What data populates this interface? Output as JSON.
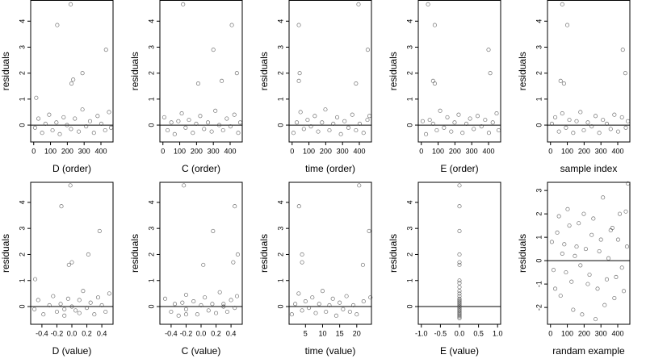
{
  "chart_data": [
    {
      "type": "scatter",
      "xlabel": "D (order)",
      "ylabel": "residuals",
      "color": "#444444",
      "hline": 0,
      "xlim": [
        -18,
        472
      ],
      "ylim": [
        -0.65,
        4.8
      ],
      "xticks": [
        0,
        100,
        200,
        300,
        400
      ],
      "yticks": [
        0,
        1,
        2,
        3,
        4
      ],
      "x": [
        220,
        140,
        430,
        290,
        235,
        225,
        15,
        8,
        28,
        50,
        70,
        92,
        112,
        135,
        155,
        178,
        198,
        222,
        245,
        268,
        290,
        312,
        335,
        358,
        380,
        402,
        425,
        448,
        460
      ],
      "values": [
        4.65,
        3.85,
        2.9,
        2.0,
        1.75,
        1.6,
        1.05,
        -0.1,
        0.25,
        -0.3,
        0.05,
        0.4,
        -0.2,
        0.1,
        -0.35,
        0.3,
        0,
        -0.15,
        0.25,
        -0.25,
        0.6,
        -0.05,
        0.15,
        -0.3,
        0.35,
        0.05,
        -0.2,
        0.5,
        -0.1
      ]
    },
    {
      "type": "scatter",
      "xlabel": "C (order)",
      "ylabel": "residuals",
      "color": "#444444",
      "hline": 0,
      "xlim": [
        -18,
        472
      ],
      "ylim": [
        -0.65,
        4.8
      ],
      "xticks": [
        0,
        100,
        200,
        300,
        400
      ],
      "yticks": [
        0,
        1,
        2,
        3,
        4
      ],
      "x": [
        120,
        410,
        300,
        440,
        350,
        210,
        8,
        28,
        50,
        70,
        92,
        112,
        135,
        155,
        178,
        198,
        222,
        245,
        268,
        290,
        312,
        335,
        358,
        380,
        402,
        425,
        448,
        460
      ],
      "values": [
        4.65,
        3.85,
        2.9,
        2.0,
        1.7,
        1.6,
        0.3,
        -0.2,
        0.1,
        -0.35,
        0.15,
        0.45,
        -0.1,
        0.2,
        -0.3,
        0.05,
        0.35,
        -0.15,
        0.1,
        -0.25,
        0.55,
        0,
        -0.2,
        0.25,
        -0.05,
        0.4,
        -0.3,
        0.1
      ]
    },
    {
      "type": "scatter",
      "xlabel": "time (order)",
      "ylabel": "residuals",
      "color": "#444444",
      "hline": 0,
      "xlim": [
        -18,
        472
      ],
      "ylim": [
        -0.65,
        4.8
      ],
      "xticks": [
        0,
        100,
        200,
        300,
        400
      ],
      "yticks": [
        0,
        1,
        2,
        3,
        4
      ],
      "x": [
        395,
        40,
        450,
        45,
        40,
        380,
        8,
        28,
        50,
        70,
        92,
        112,
        135,
        155,
        178,
        198,
        222,
        245,
        268,
        290,
        312,
        335,
        358,
        380,
        402,
        425,
        448,
        460
      ],
      "values": [
        4.65,
        3.85,
        2.9,
        2.0,
        1.7,
        1.6,
        -0.3,
        0.1,
        0.5,
        -0.15,
        0.2,
        -0.05,
        0.35,
        -0.25,
        0.1,
        0.6,
        -0.2,
        0.05,
        0.3,
        -0.35,
        0.15,
        -0.1,
        0.4,
        -0.2,
        0.05,
        -0.3,
        0.2,
        0.35
      ]
    },
    {
      "type": "scatter",
      "xlabel": "E (order)",
      "ylabel": "residuals",
      "color": "#444444",
      "hline": 0,
      "xlim": [
        -18,
        472
      ],
      "ylim": [
        -0.65,
        4.8
      ],
      "xticks": [
        0,
        100,
        200,
        300,
        400
      ],
      "yticks": [
        0,
        1,
        2,
        3,
        4
      ],
      "x": [
        40,
        80,
        400,
        410,
        70,
        80,
        8,
        28,
        50,
        70,
        92,
        112,
        135,
        155,
        178,
        198,
        222,
        245,
        268,
        290,
        312,
        335,
        358,
        380,
        402,
        425,
        448,
        460
      ],
      "values": [
        4.65,
        3.85,
        2.9,
        2.0,
        1.7,
        1.6,
        0.15,
        -0.35,
        0.2,
        0.05,
        -0.2,
        0.55,
        -0.1,
        0.3,
        -0.25,
        0.1,
        0.4,
        -0.3,
        0.05,
        0.25,
        -0.15,
        0.35,
        -0.05,
        0.2,
        -0.3,
        0.1,
        0.45,
        -0.2
      ]
    },
    {
      "type": "scatter",
      "xlabel": "sample index",
      "ylabel": "residuals",
      "color": "#444444",
      "hline": 0,
      "xlim": [
        -18,
        472
      ],
      "ylim": [
        -0.65,
        4.8
      ],
      "xticks": [
        0,
        100,
        200,
        300,
        400
      ],
      "yticks": [
        0,
        1,
        2,
        3,
        4
      ],
      "x": [
        70,
        100,
        430,
        445,
        60,
        80,
        8,
        28,
        50,
        70,
        92,
        112,
        135,
        155,
        178,
        198,
        222,
        245,
        268,
        290,
        312,
        335,
        358,
        380,
        402,
        425,
        448,
        460
      ],
      "values": [
        4.65,
        3.85,
        2.9,
        2.0,
        1.7,
        1.6,
        0.05,
        0.3,
        -0.25,
        0.45,
        -0.1,
        0.2,
        -0.3,
        0.15,
        0.5,
        -0.2,
        0.1,
        -0.05,
        0.35,
        -0.3,
        0.2,
        0.05,
        -0.15,
        0.4,
        -0.25,
        0.3,
        -0.1,
        0.15
      ]
    },
    {
      "type": "scatter",
      "xlabel": "D (value)",
      "ylabel": "residuals",
      "color": "#444444",
      "hline": 0,
      "xlim": [
        -0.55,
        0.55
      ],
      "ylim": [
        -0.68,
        4.77
      ],
      "xticks": [
        -0.4,
        -0.2,
        {
          "value": 0,
          "label": "0.0"
        },
        0.2,
        0.4
      ],
      "yticks": [
        0,
        1,
        2,
        3,
        4
      ],
      "x": [
        -0.02,
        -0.14,
        0.37,
        0.22,
        0,
        -0.04,
        -0.49,
        -0.5,
        -0.45,
        -0.38,
        -0.3,
        -0.25,
        -0.2,
        -0.15,
        -0.1,
        -0.05,
        0,
        0.05,
        0.1,
        0.1,
        0.15,
        0.2,
        0.25,
        0.3,
        0.35,
        0.4,
        0.45,
        0.5,
        -0.1
      ],
      "values": [
        4.65,
        3.85,
        2.9,
        2.0,
        1.7,
        1.6,
        1.05,
        -0.1,
        0.25,
        -0.3,
        0.05,
        0.4,
        -0.2,
        0.1,
        -0.35,
        0.3,
        0,
        -0.15,
        0.25,
        -0.25,
        0.6,
        -0.05,
        0.15,
        -0.3,
        0.35,
        0.05,
        -0.2,
        0.5,
        -0.1
      ]
    },
    {
      "type": "scatter",
      "xlabel": "C (value)",
      "ylabel": "residuals",
      "color": "#444444",
      "hline": 0,
      "xlim": [
        -0.55,
        0.55
      ],
      "ylim": [
        -0.68,
        4.77
      ],
      "xticks": [
        -0.4,
        -0.2,
        {
          "value": 0,
          "label": "0.0"
        },
        0.2,
        0.4
      ],
      "yticks": [
        0,
        1,
        2,
        3,
        4
      ],
      "x": [
        -0.23,
        0.45,
        0.16,
        0.49,
        0.43,
        0.03,
        -0.48,
        -0.4,
        -0.35,
        -0.3,
        -0.25,
        -0.2,
        -0.2,
        -0.1,
        -0.05,
        0,
        0.05,
        0.1,
        0.15,
        0.2,
        0.25,
        0.3,
        0.35,
        0.4,
        0.45,
        0.48,
        -0.2,
        0.3
      ],
      "values": [
        4.65,
        3.85,
        2.9,
        2.0,
        1.7,
        1.6,
        0.3,
        -0.2,
        0.1,
        -0.35,
        0.15,
        0.45,
        -0.1,
        0.2,
        -0.3,
        0.05,
        0.35,
        -0.15,
        0.1,
        -0.25,
        0.55,
        0,
        -0.2,
        0.25,
        -0.05,
        0.4,
        -0.3,
        0.1
      ]
    },
    {
      "type": "scatter",
      "xlabel": "time (value)",
      "ylabel": "residuals",
      "color": "#444444",
      "hline": 0,
      "xlim": [
        0.2,
        24.3
      ],
      "ylim": [
        -0.68,
        4.77
      ],
      "xticks": [
        5,
        10,
        15,
        20
      ],
      "yticks": [
        0,
        1,
        2,
        3,
        4
      ],
      "x": [
        20.7,
        3.1,
        23.6,
        4,
        4,
        21.8,
        1,
        2,
        3,
        4,
        5,
        6,
        7,
        8,
        9,
        10,
        11,
        12,
        13,
        14,
        15,
        16,
        17,
        18,
        19,
        20,
        22,
        24
      ],
      "values": [
        4.65,
        3.85,
        2.9,
        2.0,
        1.7,
        1.6,
        -0.3,
        0.1,
        0.5,
        -0.15,
        0.2,
        -0.05,
        0.35,
        -0.25,
        0.1,
        0.6,
        -0.2,
        0.05,
        0.3,
        -0.35,
        0.15,
        -0.1,
        0.4,
        -0.2,
        0.05,
        -0.3,
        0.2,
        0.35
      ]
    },
    {
      "type": "scatter",
      "xlabel": "E (value)",
      "ylabel": "residuals",
      "color": "#444444",
      "hline": 0,
      "xlim": [
        -1.08,
        1.08
      ],
      "ylim": [
        -0.68,
        4.77
      ],
      "xticks": [
        {
          "value": -1,
          "label": "-1.0"
        },
        -0.5,
        {
          "value": 0,
          "label": "0.0"
        },
        0.5,
        {
          "value": 1,
          "label": "1.0"
        }
      ],
      "yticks": [
        0,
        1,
        2,
        3,
        4
      ],
      "x": [
        0,
        0,
        0,
        0,
        0,
        0,
        0,
        0,
        0,
        0,
        0,
        0,
        0,
        0,
        0,
        0,
        0,
        0,
        0,
        0,
        0,
        0,
        0,
        0,
        0,
        0,
        0,
        0
      ],
      "values": [
        4.65,
        3.85,
        2.9,
        2.0,
        1.7,
        1.6,
        -0.45,
        -0.4,
        -0.35,
        -0.3,
        -0.25,
        -0.2,
        -0.15,
        -0.1,
        -0.05,
        0,
        0.05,
        0.1,
        0.15,
        0.2,
        0.25,
        0.3,
        0.4,
        0.5,
        0.6,
        0.75,
        0.9,
        1.0
      ]
    },
    {
      "type": "scatter",
      "xlabel": "randam example",
      "ylabel": "residuals",
      "color": "#444444",
      "hline": 0,
      "xlim": [
        -18,
        472
      ],
      "ylim": [
        -2.72,
        3.35
      ],
      "xticks": [
        0,
        100,
        200,
        300,
        400
      ],
      "yticks": [
        -2,
        -1,
        0,
        1,
        2,
        3
      ],
      "x": [
        8,
        28,
        50,
        70,
        92,
        112,
        135,
        155,
        178,
        198,
        222,
        245,
        268,
        290,
        312,
        335,
        358,
        380,
        402,
        425,
        448,
        460,
        18,
        40,
        60,
        82,
        102,
        125,
        145,
        168,
        188,
        210,
        232,
        255,
        280,
        300,
        322,
        345,
        368,
        390,
        412,
        436,
        455
      ],
      "values": [
        0.8,
        -1.2,
        1.9,
        0.3,
        -0.5,
        1.5,
        -2.1,
        0.6,
        -0.2,
        2.0,
        -1.0,
        1.1,
        -2.5,
        0.4,
        2.7,
        -0.8,
        1.3,
        -1.6,
        0.9,
        -0.3,
        2.1,
        3.3,
        -0.4,
        1.2,
        -1.5,
        0.7,
        2.2,
        -0.9,
        0.2,
        1.6,
        -2.3,
        0.5,
        -0.6,
        1.8,
        -1.2,
        0.9,
        -1.9,
        0.1,
        1.4,
        -0.7,
        2.0,
        -1.3,
        0.6
      ]
    }
  ]
}
